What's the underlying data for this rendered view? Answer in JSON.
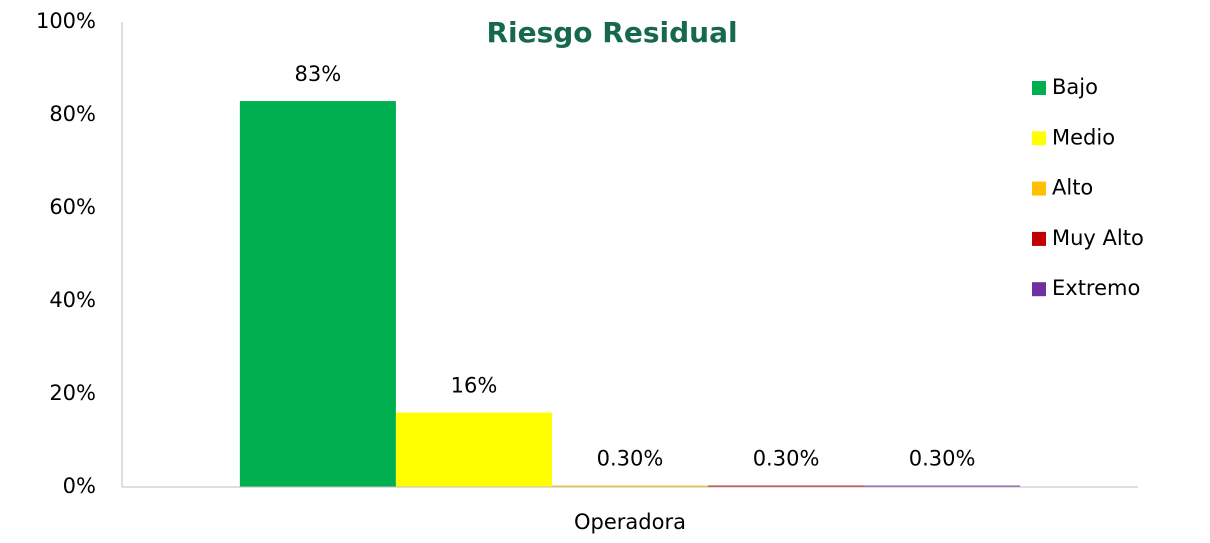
{
  "chart_data": {
    "type": "bar",
    "title": "Riesgo Residual",
    "categories": [
      "Operadora"
    ],
    "series": [
      {
        "name": "Bajo",
        "color": "#00b050",
        "values": [
          83
        ],
        "value_labels": [
          "83%"
        ]
      },
      {
        "name": "Medio",
        "color": "#ffff00",
        "values": [
          16
        ],
        "value_labels": [
          "16%"
        ]
      },
      {
        "name": "Alto",
        "color": "#ffc000",
        "values": [
          0.3
        ],
        "value_labels": [
          "0.30%"
        ]
      },
      {
        "name": "Muy Alto",
        "color": "#c00000",
        "values": [
          0.3
        ],
        "value_labels": [
          "0.30%"
        ]
      },
      {
        "name": "Extremo",
        "color": "#7030a0",
        "values": [
          0.3
        ],
        "value_labels": [
          "0.30%"
        ]
      }
    ],
    "ylim": [
      0,
      100
    ],
    "yticks": [
      {
        "value": 0,
        "label": "0%"
      },
      {
        "value": 20,
        "label": "20%"
      },
      {
        "value": 40,
        "label": "40%"
      },
      {
        "value": 60,
        "label": "60%"
      },
      {
        "value": 80,
        "label": "80%"
      },
      {
        "value": 100,
        "label": "100%"
      }
    ],
    "grid": false,
    "legend": "right"
  }
}
